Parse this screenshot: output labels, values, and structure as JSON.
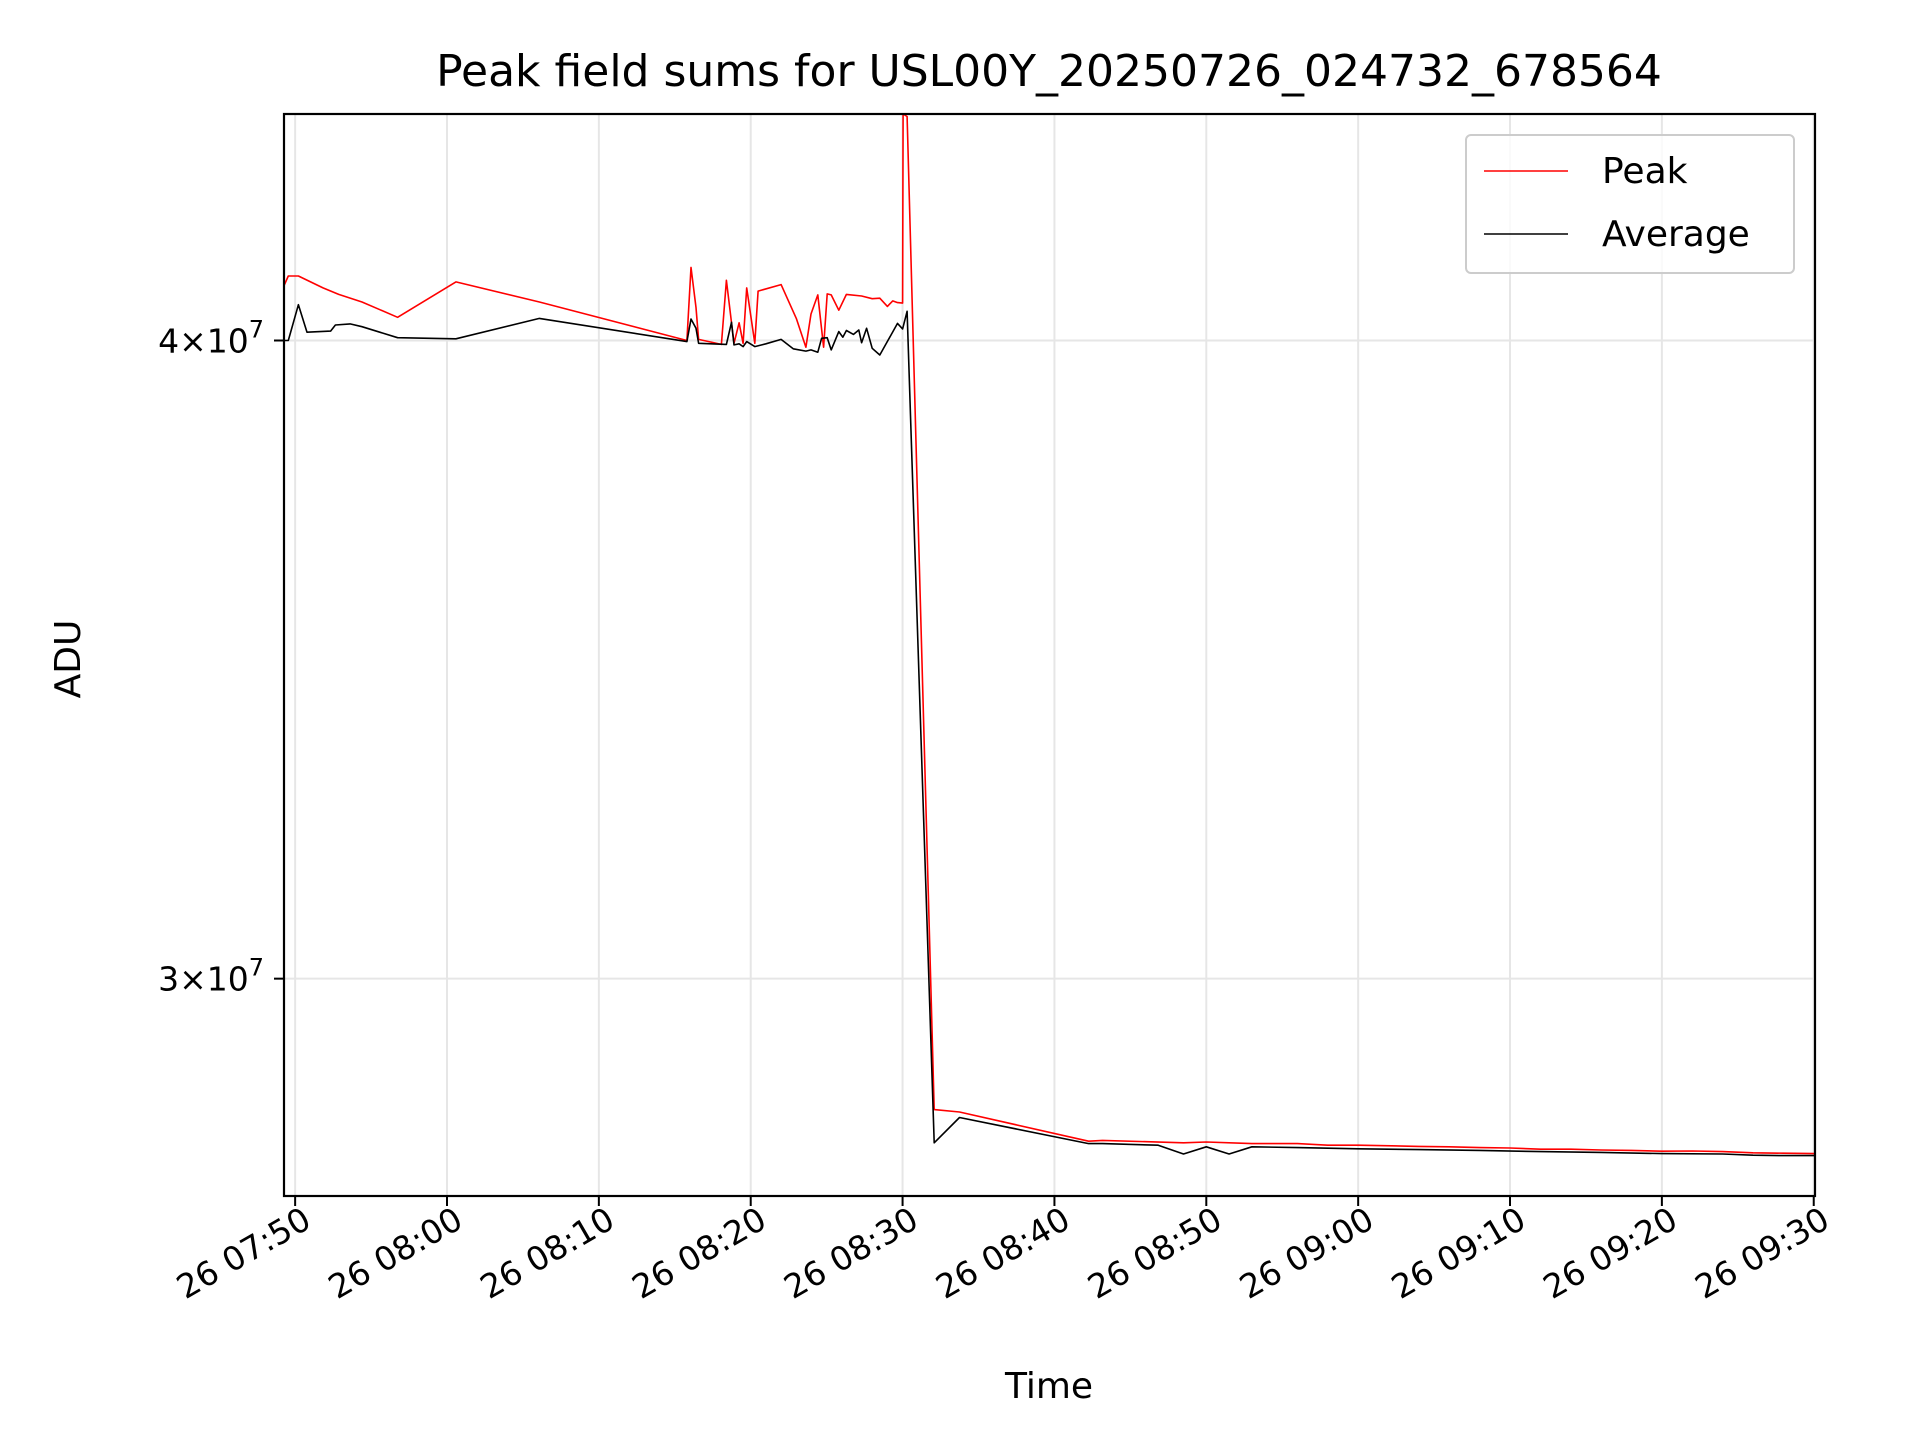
{
  "chart_data": {
    "type": "line",
    "title": "Peak field sums for USL00Y_20250726_024732_678564",
    "xlabel": "Time",
    "ylabel": "ADU",
    "x_axis": {
      "unit": "time",
      "range": [
        "07:49:16",
        "09:30:05"
      ],
      "ticks": [
        {
          "time": "07:50",
          "label": "26 07:50"
        },
        {
          "time": "08:00",
          "label": "26 08:00"
        },
        {
          "time": "08:10",
          "label": "26 08:10"
        },
        {
          "time": "08:20",
          "label": "26 08:20"
        },
        {
          "time": "08:30",
          "label": "26 08:30"
        },
        {
          "time": "08:40",
          "label": "26 08:40"
        },
        {
          "time": "08:50",
          "label": "26 08:50"
        },
        {
          "time": "09:00",
          "label": "26 09:00"
        },
        {
          "time": "09:10",
          "label": "26 09:10"
        },
        {
          "time": "09:20",
          "label": "26 09:20"
        },
        {
          "time": "09:30",
          "label": "26 09:30"
        }
      ]
    },
    "y_axis": {
      "scale": "log",
      "range": [
        27200000,
        44300000
      ],
      "ticks": [
        {
          "value": 30000000,
          "mant": "3",
          "exp": "7"
        },
        {
          "value": 40000000,
          "mant": "4",
          "exp": "7"
        }
      ]
    },
    "grid": true,
    "legend_position": "upper right",
    "series": [
      {
        "name": "Peak",
        "color": "#ff0000",
        "points": [
          [
            "07:49:16",
            41000000
          ],
          [
            "07:49:33",
            41180000
          ],
          [
            "07:50:13",
            41180000
          ],
          [
            "07:51:50",
            40960000
          ],
          [
            "07:52:52",
            40840000
          ],
          [
            "07:54:24",
            40700000
          ],
          [
            "07:55:35",
            40560000
          ],
          [
            "07:56:45",
            40420000
          ],
          [
            "08:00:35",
            41070000
          ],
          [
            "08:06:05",
            40700000
          ],
          [
            "08:15:48",
            40000000
          ],
          [
            "08:16:04",
            41340000
          ],
          [
            "08:16:24",
            40600000
          ],
          [
            "08:16:34",
            40020000
          ],
          [
            "08:18:04",
            39930000
          ],
          [
            "08:18:24",
            41100000
          ],
          [
            "08:18:54",
            39950000
          ],
          [
            "08:19:14",
            40320000
          ],
          [
            "08:19:30",
            39950000
          ],
          [
            "08:19:44",
            40960000
          ],
          [
            "08:20:16",
            39950000
          ],
          [
            "08:20:29",
            40900000
          ],
          [
            "08:22:00",
            41020000
          ],
          [
            "08:23:00",
            40400000
          ],
          [
            "08:23:38",
            39880000
          ],
          [
            "08:23:58",
            40480000
          ],
          [
            "08:24:25",
            40830000
          ],
          [
            "08:24:48",
            39880000
          ],
          [
            "08:25:02",
            40850000
          ],
          [
            "08:25:18",
            40830000
          ],
          [
            "08:25:48",
            40550000
          ],
          [
            "08:26:18",
            40840000
          ],
          [
            "08:27:18",
            40810000
          ],
          [
            "08:28:00",
            40760000
          ],
          [
            "08:28:30",
            40770000
          ],
          [
            "08:29:00",
            40620000
          ],
          [
            "08:29:21",
            40720000
          ],
          [
            "08:29:40",
            40690000
          ],
          [
            "08:30:00",
            40680000
          ],
          [
            "08:30:02",
            44300000
          ],
          [
            "08:30:18",
            44250000
          ],
          [
            "08:32:05",
            28280000
          ],
          [
            "08:33:45",
            28250000
          ],
          [
            "08:42:15",
            27880000
          ],
          [
            "08:43:10",
            27890000
          ],
          [
            "08:48:30",
            27860000
          ],
          [
            "08:50:00",
            27870000
          ],
          [
            "08:53:00",
            27850000
          ],
          [
            "08:56:00",
            27850000
          ],
          [
            "08:58:00",
            27830000
          ],
          [
            "09:00:00",
            27830000
          ],
          [
            "09:04:00",
            27815000
          ],
          [
            "09:06:00",
            27810000
          ],
          [
            "09:08:00",
            27800000
          ],
          [
            "09:10:00",
            27795000
          ],
          [
            "09:12:00",
            27780000
          ],
          [
            "09:14:00",
            27780000
          ],
          [
            "09:16:00",
            27770000
          ],
          [
            "09:18:00",
            27765000
          ],
          [
            "09:20:00",
            27755000
          ],
          [
            "09:22:00",
            27758000
          ],
          [
            "09:24:00",
            27750000
          ],
          [
            "09:26:00",
            27735000
          ],
          [
            "09:28:00",
            27730000
          ],
          [
            "09:30:05",
            27725000
          ]
        ]
      },
      {
        "name": "Average",
        "color": "#000000",
        "points": [
          [
            "07:49:16",
            40000000
          ],
          [
            "07:49:33",
            40000000
          ],
          [
            "07:50:13",
            40650000
          ],
          [
            "07:50:47",
            40150000
          ],
          [
            "07:52:20",
            40170000
          ],
          [
            "07:52:39",
            40280000
          ],
          [
            "07:53:37",
            40300000
          ],
          [
            "07:54:24",
            40250000
          ],
          [
            "07:56:45",
            40050000
          ],
          [
            "08:00:35",
            40030000
          ],
          [
            "08:06:05",
            40400000
          ],
          [
            "08:15:48",
            39980000
          ],
          [
            "08:16:04",
            40390000
          ],
          [
            "08:16:24",
            40220000
          ],
          [
            "08:16:34",
            39950000
          ],
          [
            "08:18:24",
            39930000
          ],
          [
            "08:18:44",
            40330000
          ],
          [
            "08:18:54",
            39920000
          ],
          [
            "08:19:14",
            39940000
          ],
          [
            "08:19:30",
            39890000
          ],
          [
            "08:19:44",
            39980000
          ],
          [
            "08:20:16",
            39890000
          ],
          [
            "08:21:00",
            39940000
          ],
          [
            "08:22:00",
            40020000
          ],
          [
            "08:22:48",
            39850000
          ],
          [
            "08:23:38",
            39810000
          ],
          [
            "08:23:58",
            39830000
          ],
          [
            "08:24:25",
            39790000
          ],
          [
            "08:24:40",
            40040000
          ],
          [
            "08:25:02",
            40050000
          ],
          [
            "08:25:18",
            39830000
          ],
          [
            "08:25:48",
            40160000
          ],
          [
            "08:26:04",
            40060000
          ],
          [
            "08:26:18",
            40180000
          ],
          [
            "08:26:46",
            40110000
          ],
          [
            "08:27:07",
            40190000
          ],
          [
            "08:27:18",
            39960000
          ],
          [
            "08:27:38",
            40220000
          ],
          [
            "08:28:00",
            39860000
          ],
          [
            "08:28:30",
            39740000
          ],
          [
            "08:29:40",
            40310000
          ],
          [
            "08:30:00",
            40210000
          ],
          [
            "08:30:18",
            40530000
          ],
          [
            "08:32:05",
            27860000
          ],
          [
            "08:33:45",
            28180000
          ],
          [
            "08:42:15",
            27850000
          ],
          [
            "08:43:10",
            27850000
          ],
          [
            "08:46:50",
            27830000
          ],
          [
            "08:48:30",
            27720000
          ],
          [
            "08:50:00",
            27810000
          ],
          [
            "08:51:30",
            27720000
          ],
          [
            "08:53:00",
            27810000
          ],
          [
            "08:56:00",
            27800000
          ],
          [
            "09:00:00",
            27785000
          ],
          [
            "09:04:00",
            27775000
          ],
          [
            "09:08:00",
            27765000
          ],
          [
            "09:12:00",
            27750000
          ],
          [
            "09:16:00",
            27740000
          ],
          [
            "09:20:00",
            27725000
          ],
          [
            "09:24:00",
            27720000
          ],
          [
            "09:26:00",
            27705000
          ],
          [
            "09:28:00",
            27700000
          ],
          [
            "09:30:05",
            27700000
          ]
        ]
      }
    ]
  }
}
